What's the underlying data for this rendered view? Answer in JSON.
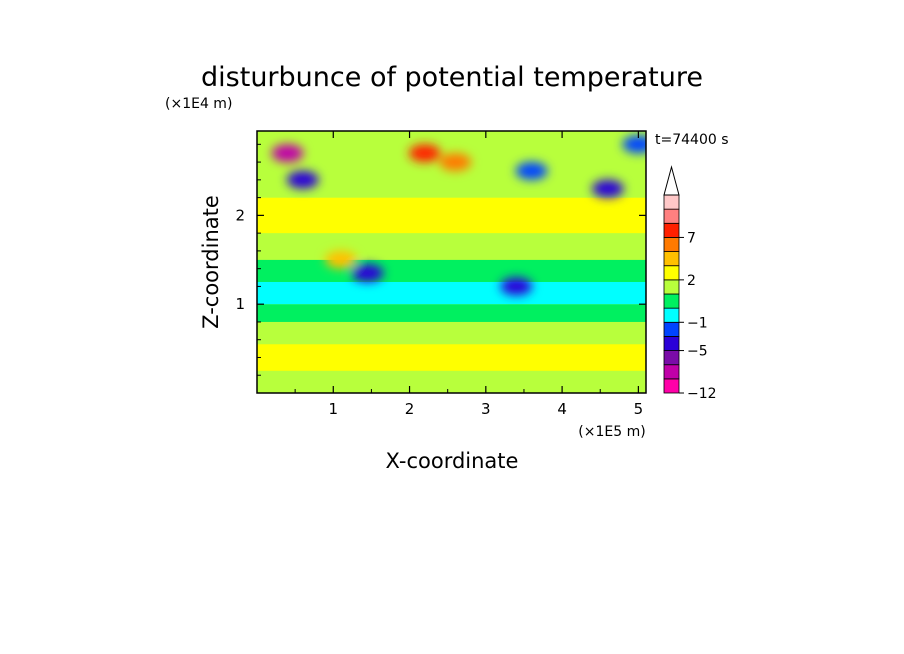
{
  "chart_data": {
    "type": "heatmap",
    "title": "disturbunce of potential temperature",
    "xlabel": "X-coordinate",
    "ylabel": "Z-coordinate",
    "x_unit_label": "(×1E5 m)",
    "y_unit_label": "(×1E4 m)",
    "time_label": "t=74400 s",
    "xlim": [
      0,
      5.1
    ],
    "ylim": [
      0,
      2.95
    ],
    "x_ticks": [
      1,
      2,
      3,
      4,
      5
    ],
    "x_tick_labels": [
      "1",
      "2",
      "3",
      "4",
      "5"
    ],
    "y_ticks": [
      1,
      2
    ],
    "y_tick_labels": [
      "1",
      "2"
    ],
    "colorbar": {
      "levels": [
        -12,
        -9,
        -7,
        -5,
        -3,
        -1,
        0,
        1,
        2,
        3,
        5,
        7,
        9,
        11
      ],
      "labeled_levels": [
        "-12",
        "-5",
        "-1",
        "2",
        "7"
      ],
      "colors": [
        "#ff00a8",
        "#c000a8",
        "#7a0ca8",
        "#2b00d8",
        "#0044ff",
        "#00ffff",
        "#00f060",
        "#b8ff3c",
        "#ffff00",
        "#ffc000",
        "#ff7a00",
        "#ff2000",
        "#ff8080",
        "#ffc8c8"
      ],
      "extend": "max"
    },
    "bands": [
      {
        "z": [
          0.05,
          0.25
        ],
        "value": 1.5
      },
      {
        "z": [
          0.25,
          0.55
        ],
        "value": 2.5
      },
      {
        "z": [
          0.55,
          0.8
        ],
        "value": 1.5
      },
      {
        "z": [
          0.8,
          1.0
        ],
        "value": 0.5
      },
      {
        "z": [
          1.0,
          1.25
        ],
        "value": -0.5
      },
      {
        "z": [
          1.25,
          1.5
        ],
        "value": 0.5
      },
      {
        "z": [
          1.5,
          1.8
        ],
        "value": 1.5
      },
      {
        "z": [
          1.8,
          2.2
        ],
        "value": 2.5
      },
      {
        "z": [
          2.2,
          2.95
        ],
        "value": 1.5
      }
    ],
    "features": [
      {
        "x": 0.4,
        "z": 2.7,
        "value": -9
      },
      {
        "x": 0.6,
        "z": 2.4,
        "value": -5
      },
      {
        "x": 1.1,
        "z": 1.5,
        "value": 4
      },
      {
        "x": 1.45,
        "z": 1.35,
        "value": -5
      },
      {
        "x": 2.2,
        "z": 2.7,
        "value": 8
      },
      {
        "x": 2.6,
        "z": 2.6,
        "value": 6
      },
      {
        "x": 3.4,
        "z": 1.2,
        "value": -5
      },
      {
        "x": 3.6,
        "z": 2.5,
        "value": -3
      },
      {
        "x": 4.6,
        "z": 2.3,
        "value": -5
      },
      {
        "x": 5.0,
        "z": 2.8,
        "value": -3
      }
    ]
  }
}
